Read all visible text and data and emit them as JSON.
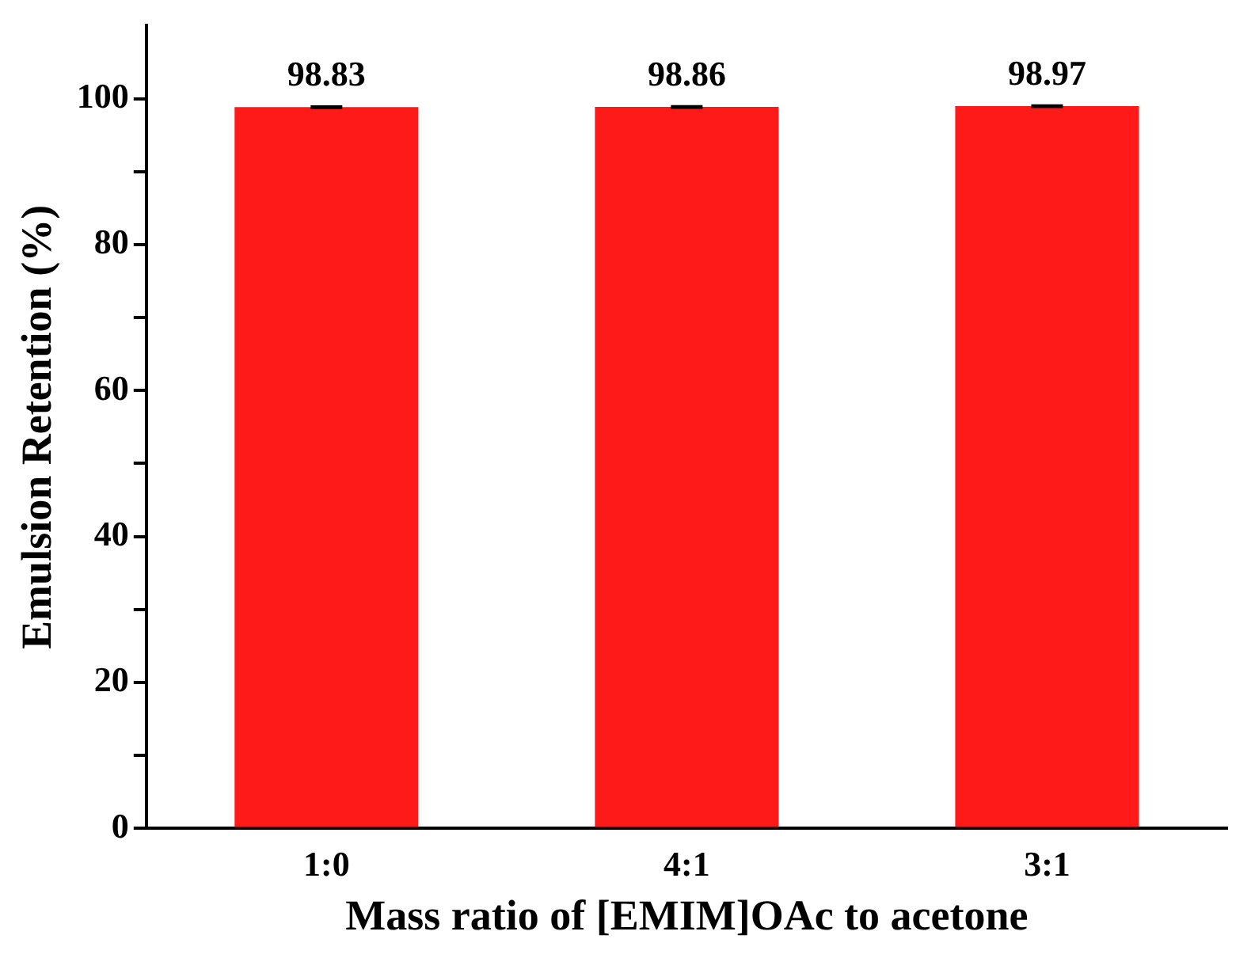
{
  "chart_data": {
    "type": "bar",
    "xlabel": "Mass ratio of [EMIM]OAc to acetone",
    "ylabel": "Emulsion Retention (%)",
    "categories": [
      "1:0",
      "4:1",
      "3:1"
    ],
    "values": [
      98.83,
      98.86,
      98.97
    ],
    "errors": [
      0.1,
      0.1,
      0.1
    ],
    "color": "#ff1a1a",
    "data_labels": true,
    "ylim": [
      0,
      110
    ],
    "yticks": [
      0,
      {
        "value": 10,
        "label": null
      },
      20,
      {
        "value": 30,
        "label": null
      },
      40,
      {
        "value": 50,
        "label": null
      },
      60,
      {
        "value": 70,
        "label": null
      },
      80,
      {
        "value": 90,
        "label": null
      },
      100
    ],
    "grid": false,
    "legend": false
  }
}
